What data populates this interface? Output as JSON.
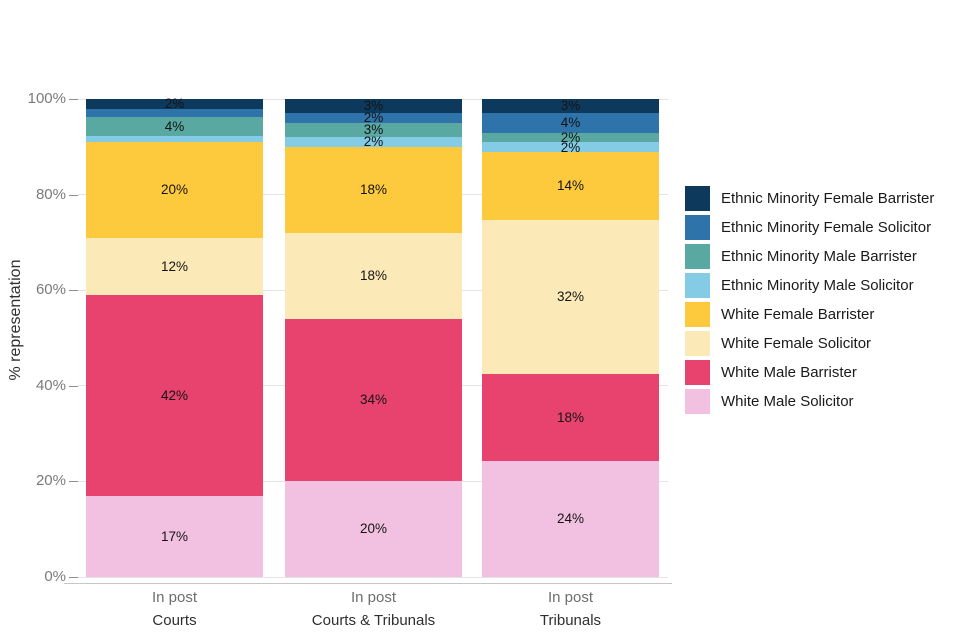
{
  "chart_data": {
    "type": "bar",
    "stacked": true,
    "title": "",
    "ylabel": "% representation",
    "ylim": [
      0,
      100
    ],
    "grid": true,
    "legend_position": "right",
    "yticks": [
      "0%",
      "20%",
      "40%",
      "60%",
      "80%",
      "100%"
    ],
    "categories": [
      {
        "tick": "In post",
        "facet": "Courts"
      },
      {
        "tick": "In post",
        "facet": "Courts & Tribunals"
      },
      {
        "tick": "In post",
        "facet": "Tribunals"
      }
    ],
    "series": [
      {
        "name": "Ethnic Minority Female Barrister",
        "color": "#0d3a5c",
        "values": [
          2,
          3,
          3
        ],
        "labels": [
          "2%",
          "3%",
          "3%"
        ]
      },
      {
        "name": "Ethnic Minority Female Solicitor",
        "color": "#2e73a9",
        "values": [
          1.7,
          2,
          4
        ],
        "labels": [
          null,
          "2%",
          "4%"
        ]
      },
      {
        "name": "Ethnic Minority Male Barrister",
        "color": "#59a8a1",
        "values": [
          4,
          3,
          2
        ],
        "labels": [
          "4%",
          "3%",
          "2%"
        ]
      },
      {
        "name": "Ethnic Minority Male Solicitor",
        "color": "#84cbe6",
        "values": [
          1.3,
          2,
          2
        ],
        "labels": [
          null,
          "2%",
          "2%"
        ]
      },
      {
        "name": "White Female Barrister",
        "color": "#fdca3e",
        "values": [
          20,
          18,
          14
        ],
        "labels": [
          "20%",
          "18%",
          "14%"
        ]
      },
      {
        "name": "White Female Solicitor",
        "color": "#fbeab8",
        "values": [
          12,
          18,
          32
        ],
        "labels": [
          "12%",
          "18%",
          "32%"
        ]
      },
      {
        "name": "White Male Barrister",
        "color": "#e8436e",
        "values": [
          42,
          34,
          18
        ],
        "labels": [
          "42%",
          "34%",
          "18%"
        ]
      },
      {
        "name": "White Male Solicitor",
        "color": "#f2c1e1",
        "values": [
          17,
          20,
          24
        ],
        "labels": [
          "17%",
          "20%",
          "24%"
        ]
      }
    ]
  }
}
